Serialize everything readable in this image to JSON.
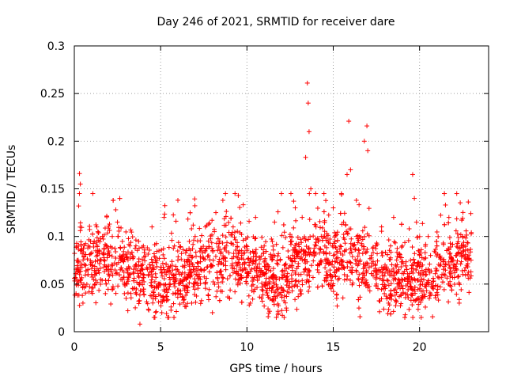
{
  "chart_data": {
    "type": "scatter",
    "title": "Day 246 of 2021, SRMTID for receiver dare",
    "xlabel": "GPS time / hours",
    "ylabel": "SRMTID / TECUs",
    "xlim": [
      0,
      24
    ],
    "ylim": [
      0,
      0.3
    ],
    "x_ticks": [
      0,
      5,
      10,
      15,
      20
    ],
    "x_tick_labels": [
      "0",
      "5",
      "10",
      "15",
      "20"
    ],
    "y_ticks": [
      0,
      0.05,
      0.1,
      0.15,
      0.2,
      0.25,
      0.3
    ],
    "y_tick_labels": [
      "0",
      "0.05",
      "0.1",
      "0.15",
      "0.2",
      "0.25",
      "0.3"
    ],
    "grid": true,
    "marker": "plus",
    "color": "#ff0000",
    "sample_points": [
      [
        0.0,
        0.056
      ],
      [
        0.1,
        0.04
      ],
      [
        0.2,
        0.065
      ],
      [
        0.25,
        0.132
      ],
      [
        0.3,
        0.166
      ],
      [
        0.35,
        0.155
      ],
      [
        0.4,
        0.085
      ],
      [
        0.5,
        0.03
      ],
      [
        0.6,
        0.07
      ],
      [
        0.8,
        0.09
      ],
      [
        1.0,
        0.06
      ],
      [
        1.2,
        0.05
      ],
      [
        1.3,
        0.11
      ],
      [
        1.5,
        0.075
      ],
      [
        1.8,
        0.04
      ],
      [
        2.0,
        0.065
      ],
      [
        2.2,
        0.1
      ],
      [
        2.4,
        0.128
      ],
      [
        2.5,
        0.115
      ],
      [
        2.7,
        0.055
      ],
      [
        2.9,
        0.04
      ],
      [
        3.0,
        0.035
      ],
      [
        3.1,
        0.022
      ],
      [
        3.2,
        0.06
      ],
      [
        3.4,
        0.045
      ],
      [
        3.6,
        0.07
      ],
      [
        3.8,
        0.008
      ],
      [
        4.0,
        0.09
      ],
      [
        4.3,
        0.06
      ],
      [
        4.5,
        0.11
      ],
      [
        4.8,
        0.075
      ],
      [
        5.0,
        0.065
      ],
      [
        5.2,
        0.12
      ],
      [
        5.5,
        0.05
      ],
      [
        5.8,
        0.09
      ],
      [
        6.0,
        0.138
      ],
      [
        6.2,
        0.06
      ],
      [
        6.5,
        0.085
      ],
      [
        6.8,
        0.03
      ],
      [
        7.0,
        0.1
      ],
      [
        7.3,
        0.055
      ],
      [
        7.6,
        0.11
      ],
      [
        7.9,
        0.07
      ],
      [
        8.0,
        0.02
      ],
      [
        8.2,
        0.125
      ],
      [
        8.5,
        0.06
      ],
      [
        8.8,
        0.09
      ],
      [
        9.0,
        0.035
      ],
      [
        9.2,
        0.11
      ],
      [
        9.5,
        0.143
      ],
      [
        9.8,
        0.065
      ],
      [
        10.0,
        0.085
      ],
      [
        10.2,
        0.03
      ],
      [
        10.5,
        0.12
      ],
      [
        10.8,
        0.06
      ],
      [
        11.0,
        0.09
      ],
      [
        11.3,
        0.05
      ],
      [
        11.6,
        0.115
      ],
      [
        11.8,
        0.018
      ],
      [
        12.0,
        0.145
      ],
      [
        12.2,
        0.07
      ],
      [
        12.5,
        0.1
      ],
      [
        12.8,
        0.13
      ],
      [
        13.0,
        0.06
      ],
      [
        13.2,
        0.12
      ],
      [
        13.4,
        0.183
      ],
      [
        13.5,
        0.261
      ],
      [
        13.55,
        0.24
      ],
      [
        13.6,
        0.21
      ],
      [
        13.7,
        0.15
      ],
      [
        13.9,
        0.08
      ],
      [
        14.0,
        0.11
      ],
      [
        14.2,
        0.07
      ],
      [
        14.5,
        0.1
      ],
      [
        14.8,
        0.05
      ],
      [
        15.0,
        0.13
      ],
      [
        15.2,
        0.035
      ],
      [
        15.4,
        0.09
      ],
      [
        15.6,
        0.115
      ],
      [
        15.8,
        0.165
      ],
      [
        15.9,
        0.221
      ],
      [
        16.0,
        0.17
      ],
      [
        16.2,
        0.09
      ],
      [
        16.5,
        0.06
      ],
      [
        16.8,
        0.2
      ],
      [
        16.95,
        0.216
      ],
      [
        17.0,
        0.19
      ],
      [
        17.2,
        0.08
      ],
      [
        17.5,
        0.05
      ],
      [
        17.8,
        0.11
      ],
      [
        18.0,
        0.07
      ],
      [
        18.2,
        0.03
      ],
      [
        18.5,
        0.12
      ],
      [
        18.8,
        0.065
      ],
      [
        19.0,
        0.09
      ],
      [
        19.3,
        0.05
      ],
      [
        19.6,
        0.165
      ],
      [
        19.7,
        0.14
      ],
      [
        20.0,
        0.08
      ],
      [
        20.2,
        0.06
      ],
      [
        20.5,
        0.1
      ],
      [
        20.8,
        0.045
      ],
      [
        21.0,
        0.09
      ],
      [
        21.3,
        0.06
      ],
      [
        21.5,
        0.133
      ],
      [
        21.7,
        0.12
      ],
      [
        22.0,
        0.07
      ],
      [
        22.3,
        0.03
      ],
      [
        22.5,
        0.1
      ],
      [
        22.8,
        0.06
      ],
      [
        23.0,
        0.104
      ]
    ]
  }
}
